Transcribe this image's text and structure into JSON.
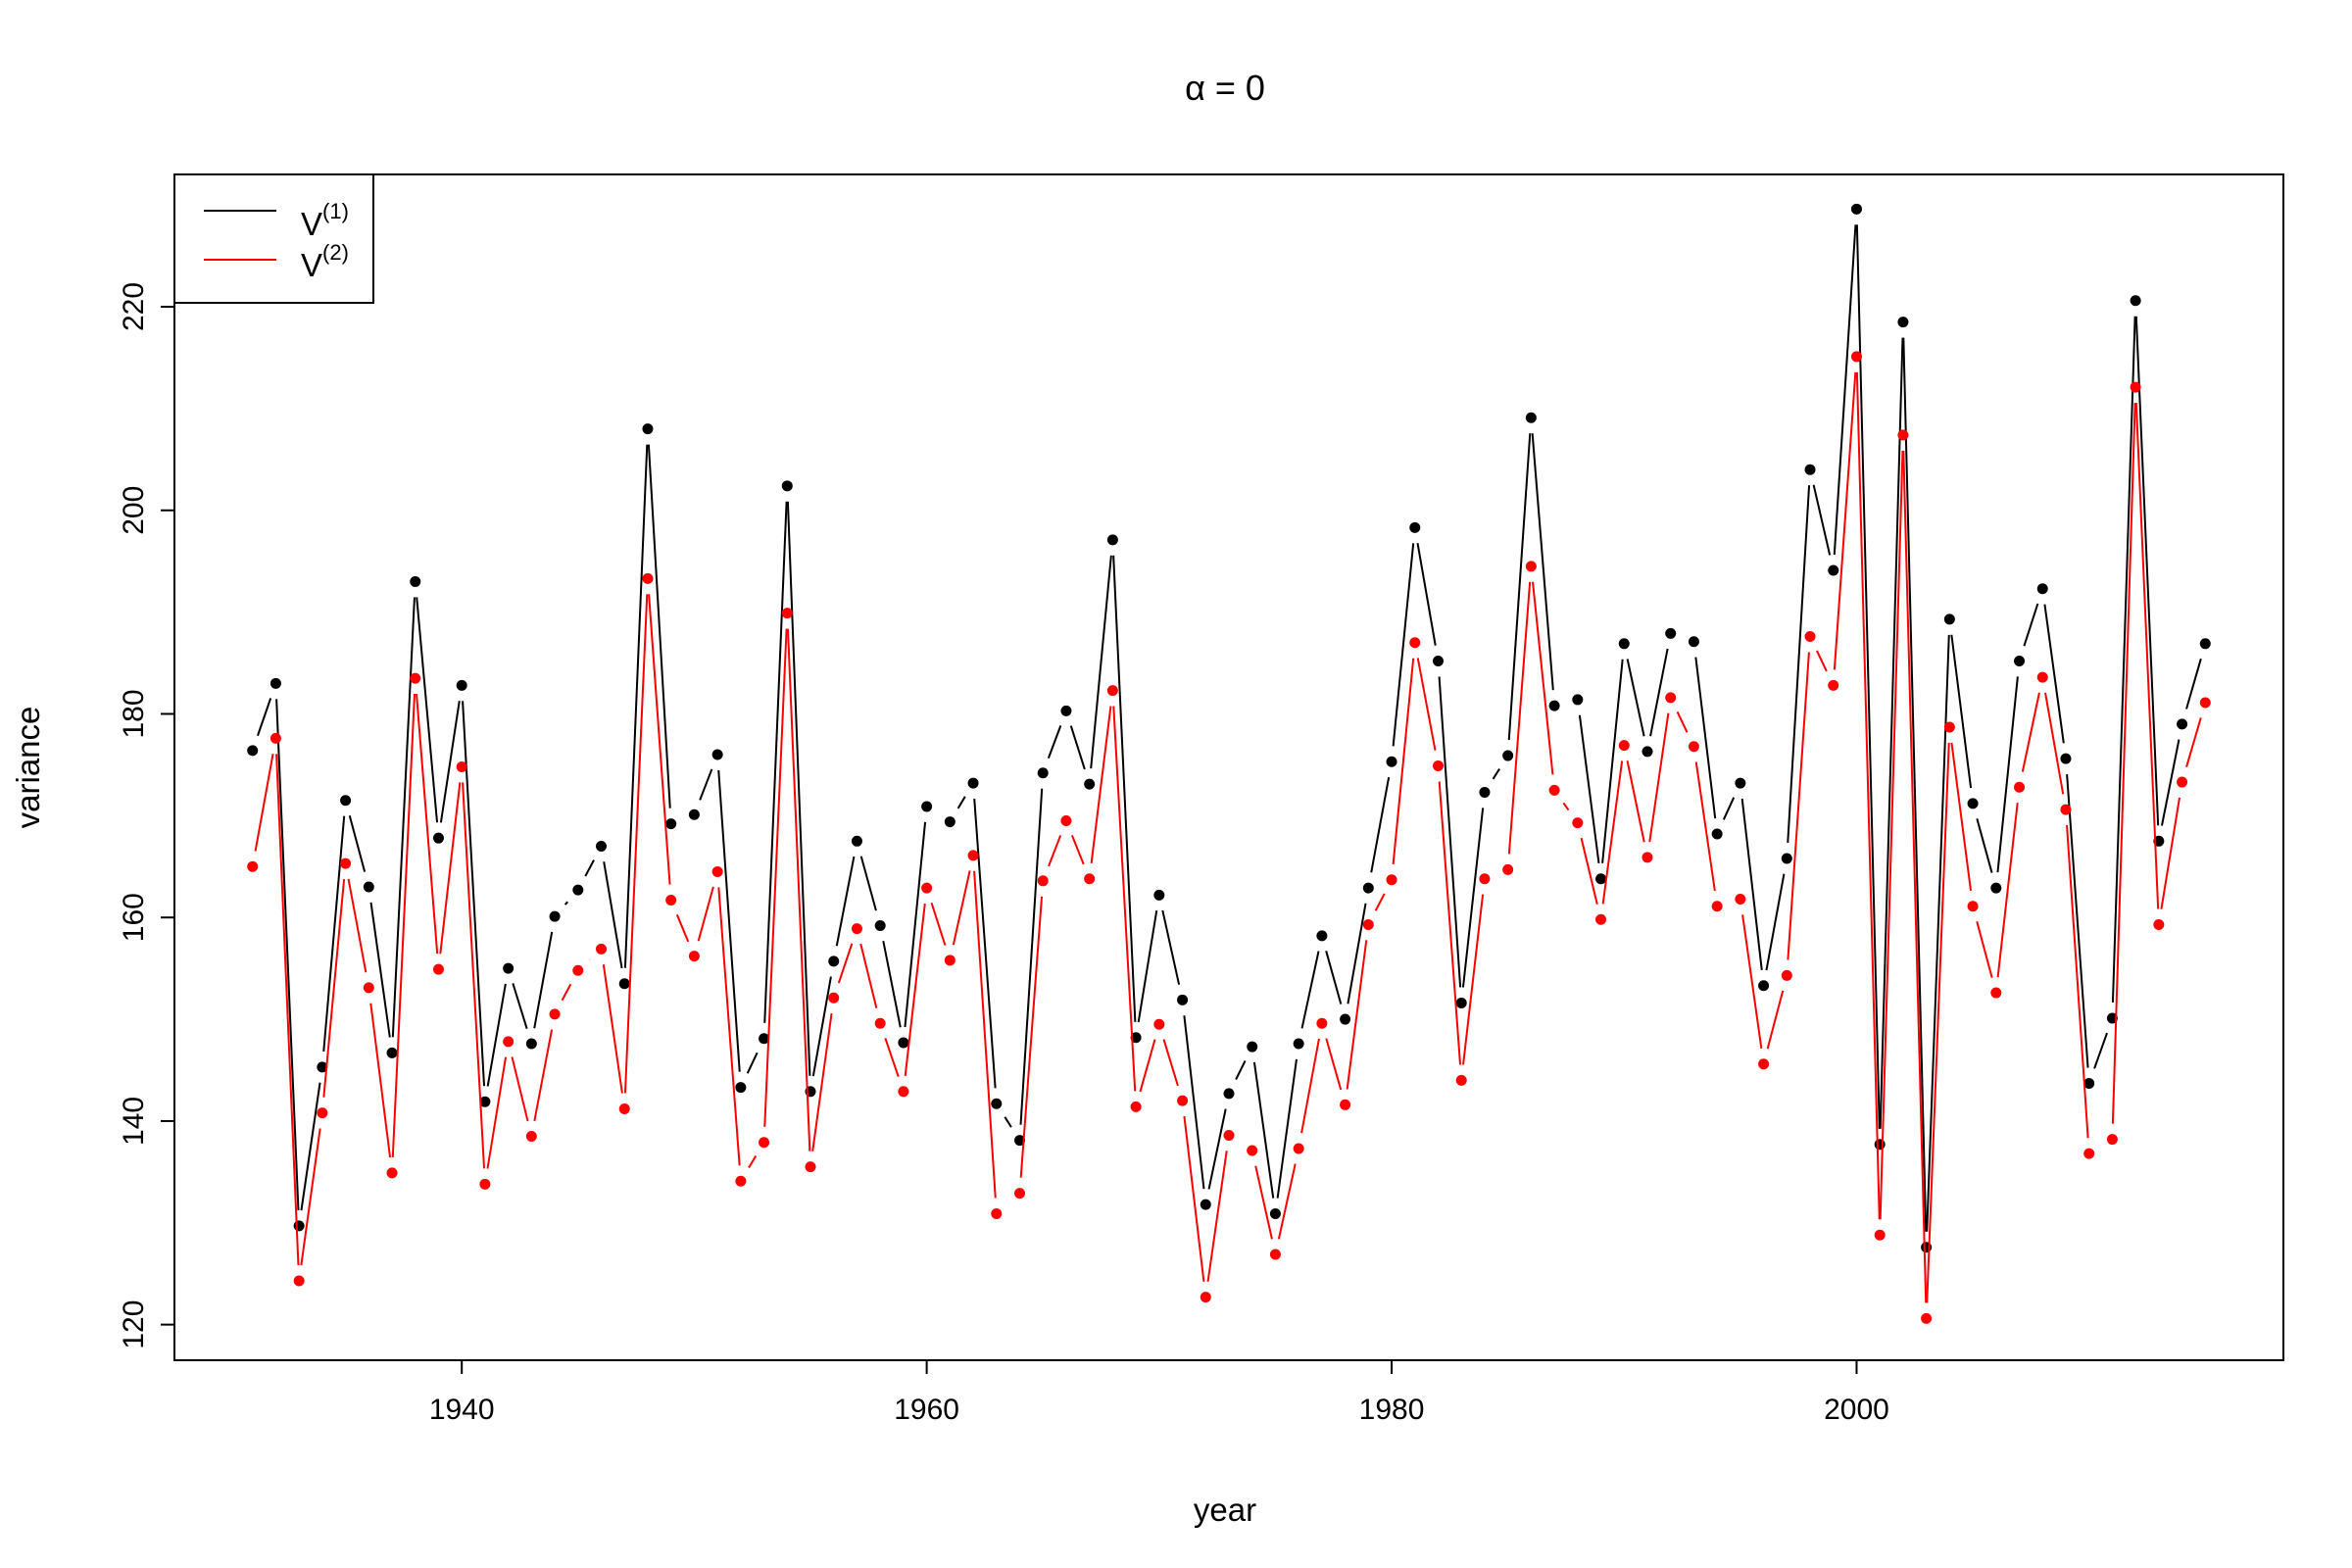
{
  "chart_data": {
    "type": "line",
    "title": "α = 0",
    "xlabel": "year",
    "ylabel": "variance",
    "xlim": [
      1928.8,
      1918
    ],
    "ylim": [
      116.5,
      233
    ],
    "x_ticks": [
      1940,
      1960,
      1980,
      2000
    ],
    "y_ticks": [
      120,
      140,
      160,
      180,
      200,
      220
    ],
    "grid": false,
    "legend_position": "top-left",
    "x": [
      1931,
      1932,
      1933,
      1934,
      1935,
      1936,
      1937,
      1938,
      1939,
      1940,
      1941,
      1942,
      1943,
      1944,
      1945,
      1946,
      1947,
      1948,
      1949,
      1950,
      1951,
      1952,
      1953,
      1954,
      1955,
      1956,
      1957,
      1958,
      1959,
      1960,
      1961,
      1962,
      1963,
      1964,
      1965,
      1966,
      1967,
      1968,
      1969,
      1970,
      1971,
      1972,
      1973,
      1974,
      1975,
      1976,
      1977,
      1978,
      1979,
      1980,
      1981,
      1982,
      1983,
      1984,
      1985,
      1986,
      1987,
      1988,
      1989,
      1990,
      1991,
      1992,
      1993,
      1994,
      1995,
      1996,
      1997,
      1998,
      1999,
      2000,
      2001,
      2002,
      2003,
      2004,
      2005,
      2006,
      2007,
      2008,
      2009,
      2010,
      2011,
      2012,
      2013,
      2014,
      2015
    ],
    "series": [
      {
        "name": "V",
        "name_sup": "(1)",
        "color": "#000000",
        "values": [
          176.4,
          183.0,
          129.7,
          145.3,
          171.5,
          163.0,
          146.7,
          193.0,
          167.8,
          182.8,
          141.9,
          155.0,
          147.6,
          160.1,
          162.7,
          167.0,
          153.5,
          208.0,
          169.2,
          170.1,
          176.0,
          143.3,
          148.1,
          202.4,
          142.9,
          155.7,
          167.5,
          159.2,
          147.7,
          170.9,
          169.4,
          173.2,
          141.7,
          138.1,
          174.2,
          180.3,
          173.1,
          197.1,
          148.2,
          162.2,
          151.9,
          131.8,
          142.7,
          147.3,
          130.9,
          147.6,
          158.2,
          150.0,
          162.9,
          175.3,
          198.3,
          185.2,
          151.6,
          172.3,
          175.9,
          209.1,
          180.8,
          181.4,
          163.8,
          186.9,
          176.3,
          187.9,
          187.1,
          168.2,
          173.2,
          153.3,
          165.8,
          204.0,
          194.1,
          229.6,
          137.7,
          218.5,
          127.6,
          189.3,
          171.2,
          162.9,
          185.2,
          192.3,
          175.6,
          143.7,
          150.1,
          220.6,
          167.5,
          179.0,
          186.9
        ]
      },
      {
        "name": "V",
        "name_sup": "(2)",
        "color": "#ff0000",
        "values": [
          165.0,
          177.6,
          124.3,
          140.8,
          165.3,
          153.1,
          134.9,
          183.5,
          154.9,
          174.8,
          133.8,
          147.8,
          138.5,
          150.5,
          154.8,
          156.9,
          141.2,
          193.3,
          161.7,
          156.2,
          164.5,
          134.1,
          137.9,
          189.9,
          135.5,
          152.1,
          158.9,
          149.6,
          142.9,
          162.9,
          155.8,
          166.1,
          130.9,
          132.9,
          163.6,
          169.5,
          163.8,
          182.3,
          141.4,
          149.5,
          142.0,
          122.7,
          138.6,
          137.1,
          126.9,
          137.3,
          149.6,
          141.6,
          159.3,
          163.7,
          187.0,
          174.9,
          144.0,
          163.8,
          164.7,
          194.5,
          172.5,
          169.3,
          159.8,
          176.9,
          165.9,
          181.6,
          176.8,
          161.1,
          161.8,
          145.6,
          154.3,
          187.6,
          182.8,
          215.1,
          128.8,
          207.4,
          120.6,
          178.7,
          161.1,
          152.6,
          172.8,
          183.6,
          170.6,
          136.8,
          138.2,
          212.1,
          159.3,
          173.3,
          181.1
        ]
      }
    ]
  }
}
